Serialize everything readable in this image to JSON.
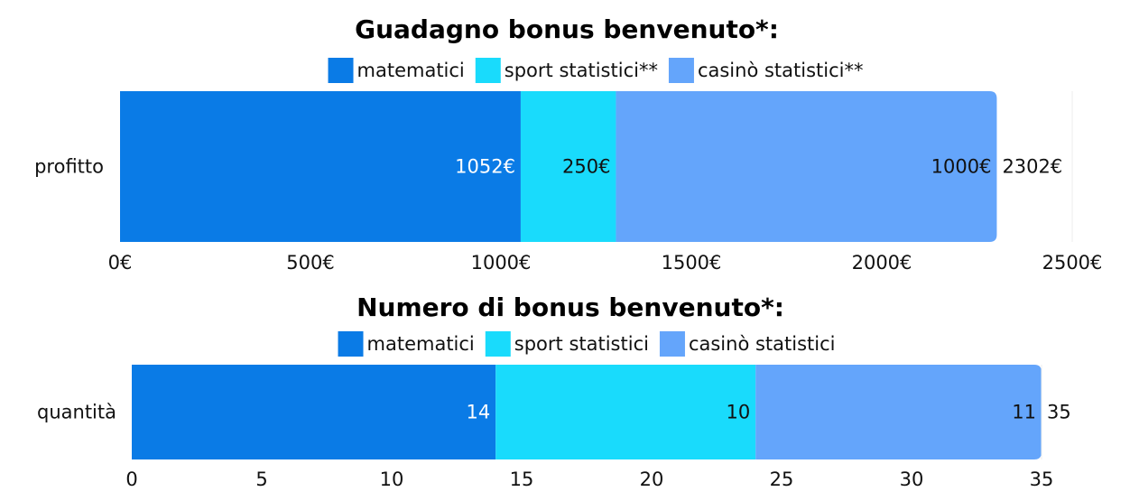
{
  "chart_data": [
    {
      "type": "bar",
      "orientation": "horizontal",
      "stacked": true,
      "title": "Guadagno bonus benvenuto*:",
      "categories": [
        "profitto"
      ],
      "series": [
        {
          "name": "matematici",
          "values": [
            1052
          ],
          "labels": [
            "1052€"
          ],
          "color": "#0a7be6"
        },
        {
          "name": "sport statistici**",
          "values": [
            250
          ],
          "labels": [
            "250€"
          ],
          "color": "#19dbfc"
        },
        {
          "name": "casinò statistici**",
          "values": [
            1000
          ],
          "labels": [
            "1000€"
          ],
          "color": "#64a5fb"
        }
      ],
      "totals": [
        "2302€"
      ],
      "xlim": [
        0,
        2500
      ],
      "ticks": [
        0,
        500,
        1000,
        1500,
        2000,
        2500
      ],
      "tick_labels": [
        "0€",
        "500€",
        "1000€",
        "1500€",
        "2000€",
        "2500€"
      ],
      "legend_position": "top",
      "grid": false
    },
    {
      "type": "bar",
      "orientation": "horizontal",
      "stacked": true,
      "title": "Numero di bonus benvenuto*:",
      "categories": [
        "quantità"
      ],
      "series": [
        {
          "name": "matematici",
          "values": [
            14
          ],
          "labels": [
            "14"
          ],
          "color": "#0a7be6"
        },
        {
          "name": "sport statistici",
          "values": [
            10
          ],
          "labels": [
            "10"
          ],
          "color": "#19dbfc"
        },
        {
          "name": "casinò statistici",
          "values": [
            11
          ],
          "labels": [
            "11"
          ],
          "color": "#64a5fb"
        }
      ],
      "totals": [
        "35"
      ],
      "xlim": [
        0,
        35
      ],
      "ticks": [
        0,
        5,
        10,
        15,
        20,
        25,
        30,
        35
      ],
      "tick_labels": [
        "0",
        "5",
        "10",
        "15",
        "20",
        "25",
        "30",
        "35"
      ],
      "legend_position": "top",
      "grid": false
    }
  ],
  "colors": {
    "matematici": "#0a7be6",
    "sport": "#19dbfc",
    "casino": "#64a5fb",
    "label_on_dark": "#ffffff",
    "label_on_light": "#111111"
  }
}
